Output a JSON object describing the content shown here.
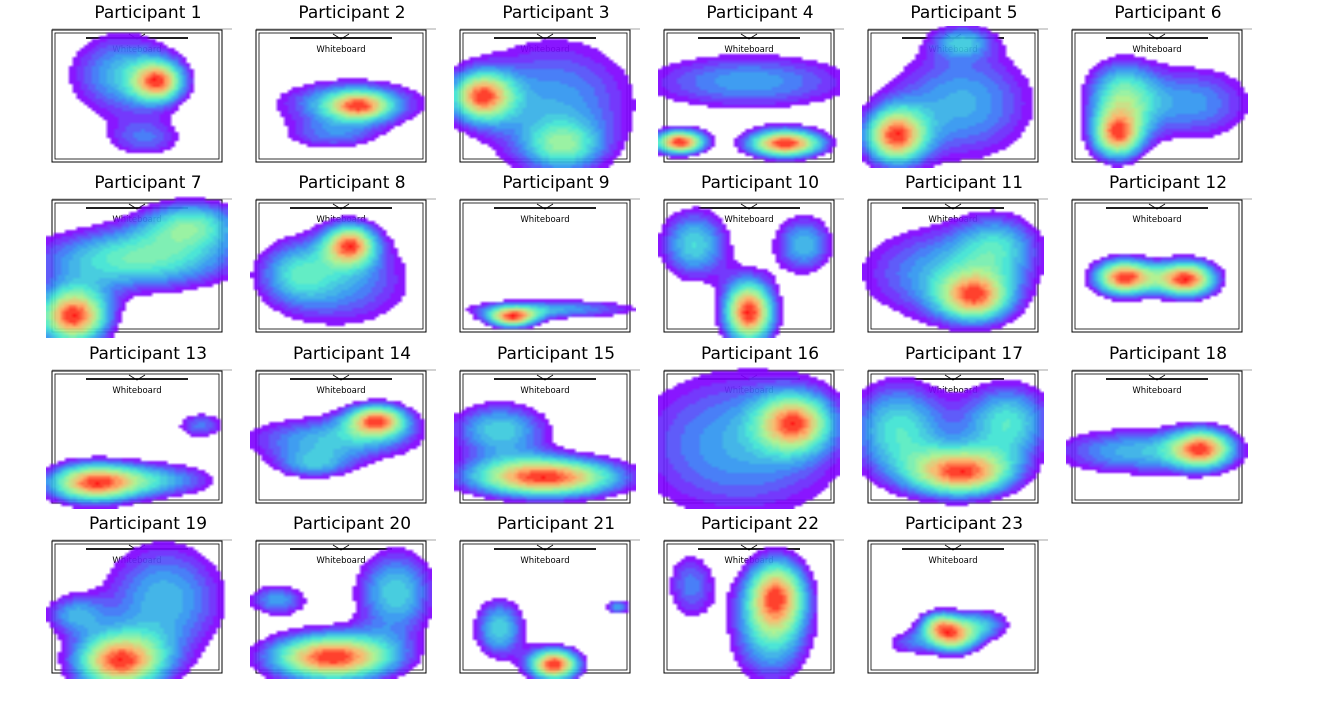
{
  "chart_data": {
    "type": "heatmap",
    "kind": "kernel-density contour maps of participant positions over a room floor plan",
    "colormap": [
      "#8000ff",
      "#2d8af4",
      "#3ee8d0",
      "#a8f48c",
      "#ffb061",
      "#ff0000"
    ],
    "room_label": "Whiteboard",
    "coordinate_space": "normalized room coordinates (0,0 = top-left of room, 1,1 = bottom-right)",
    "panels": [
      {
        "title": "Participant 1",
        "blobs": [
          {
            "x": 0.42,
            "y": 0.35,
            "sx": 0.22,
            "sy": 0.22,
            "w": 0.6
          },
          {
            "x": 0.62,
            "y": 0.4,
            "sx": 0.1,
            "sy": 0.1,
            "w": 1.0
          },
          {
            "x": 0.55,
            "y": 0.8,
            "sx": 0.16,
            "sy": 0.1,
            "w": 0.4
          }
        ]
      },
      {
        "title": "Participant 2",
        "blobs": [
          {
            "x": 0.55,
            "y": 0.55,
            "sx": 0.3,
            "sy": 0.12,
            "w": 0.8
          },
          {
            "x": 0.6,
            "y": 0.57,
            "sx": 0.12,
            "sy": 0.07,
            "w": 1.0
          },
          {
            "x": 0.45,
            "y": 0.78,
            "sx": 0.2,
            "sy": 0.08,
            "w": 0.5
          }
        ]
      },
      {
        "title": "Participant 3",
        "blobs": [
          {
            "x": 0.15,
            "y": 0.5,
            "sx": 0.12,
            "sy": 0.12,
            "w": 1.0
          },
          {
            "x": 0.55,
            "y": 0.55,
            "sx": 0.35,
            "sy": 0.35,
            "w": 0.5
          },
          {
            "x": 0.6,
            "y": 0.85,
            "sx": 0.15,
            "sy": 0.12,
            "w": 0.5
          }
        ]
      },
      {
        "title": "Participant 4",
        "blobs": [
          {
            "x": 0.12,
            "y": 0.82,
            "sx": 0.1,
            "sy": 0.06,
            "w": 1.0
          },
          {
            "x": 0.7,
            "y": 0.83,
            "sx": 0.15,
            "sy": 0.07,
            "w": 1.0
          },
          {
            "x": 0.5,
            "y": 0.4,
            "sx": 0.45,
            "sy": 0.15,
            "w": 0.4
          }
        ]
      },
      {
        "title": "Participant 5",
        "blobs": [
          {
            "x": 0.18,
            "y": 0.78,
            "sx": 0.12,
            "sy": 0.14,
            "w": 1.0
          },
          {
            "x": 0.55,
            "y": 0.55,
            "sx": 0.3,
            "sy": 0.3,
            "w": 0.5
          },
          {
            "x": 0.55,
            "y": 0.12,
            "sx": 0.12,
            "sy": 0.08,
            "w": 0.4
          }
        ]
      },
      {
        "title": "Participant 6",
        "blobs": [
          {
            "x": 0.28,
            "y": 0.78,
            "sx": 0.1,
            "sy": 0.12,
            "w": 1.0
          },
          {
            "x": 0.3,
            "y": 0.5,
            "sx": 0.14,
            "sy": 0.18,
            "w": 0.7
          },
          {
            "x": 0.7,
            "y": 0.55,
            "sx": 0.25,
            "sy": 0.2,
            "w": 0.5
          }
        ]
      },
      {
        "title": "Participant 7",
        "blobs": [
          {
            "x": 0.15,
            "y": 0.85,
            "sx": 0.14,
            "sy": 0.14,
            "w": 1.0
          },
          {
            "x": 0.5,
            "y": 0.45,
            "sx": 0.4,
            "sy": 0.16,
            "w": 0.6
          },
          {
            "x": 0.8,
            "y": 0.2,
            "sx": 0.2,
            "sy": 0.12,
            "w": 0.5
          }
        ]
      },
      {
        "title": "Participant 8",
        "blobs": [
          {
            "x": 0.55,
            "y": 0.35,
            "sx": 0.1,
            "sy": 0.1,
            "w": 1.0
          },
          {
            "x": 0.5,
            "y": 0.6,
            "sx": 0.3,
            "sy": 0.25,
            "w": 0.5
          },
          {
            "x": 0.25,
            "y": 0.55,
            "sx": 0.15,
            "sy": 0.15,
            "w": 0.4
          }
        ]
      },
      {
        "title": "Participant 9",
        "blobs": [
          {
            "x": 0.32,
            "y": 0.86,
            "sx": 0.1,
            "sy": 0.05,
            "w": 1.0
          },
          {
            "x": 0.55,
            "y": 0.8,
            "sx": 0.35,
            "sy": 0.05,
            "w": 0.5
          }
        ]
      },
      {
        "title": "Participant 10",
        "blobs": [
          {
            "x": 0.5,
            "y": 0.82,
            "sx": 0.1,
            "sy": 0.16,
            "w": 1.0
          },
          {
            "x": 0.2,
            "y": 0.35,
            "sx": 0.14,
            "sy": 0.18,
            "w": 0.5
          },
          {
            "x": 0.8,
            "y": 0.35,
            "sx": 0.12,
            "sy": 0.15,
            "w": 0.45
          }
        ]
      },
      {
        "title": "Participant 11",
        "blobs": [
          {
            "x": 0.62,
            "y": 0.72,
            "sx": 0.14,
            "sy": 0.12,
            "w": 1.0
          },
          {
            "x": 0.45,
            "y": 0.55,
            "sx": 0.35,
            "sy": 0.25,
            "w": 0.6
          },
          {
            "x": 0.75,
            "y": 0.35,
            "sx": 0.16,
            "sy": 0.16,
            "w": 0.5
          }
        ]
      },
      {
        "title": "Participant 12",
        "blobs": [
          {
            "x": 0.32,
            "y": 0.58,
            "sx": 0.12,
            "sy": 0.09,
            "w": 1.0
          },
          {
            "x": 0.66,
            "y": 0.59,
            "sx": 0.12,
            "sy": 0.09,
            "w": 1.0
          }
        ]
      },
      {
        "title": "Participant 13",
        "blobs": [
          {
            "x": 0.25,
            "y": 0.82,
            "sx": 0.18,
            "sy": 0.1,
            "w": 1.0
          },
          {
            "x": 0.6,
            "y": 0.8,
            "sx": 0.25,
            "sy": 0.09,
            "w": 0.5
          },
          {
            "x": 0.85,
            "y": 0.42,
            "sx": 0.1,
            "sy": 0.07,
            "w": 0.4
          }
        ]
      },
      {
        "title": "Participant 14",
        "blobs": [
          {
            "x": 0.7,
            "y": 0.38,
            "sx": 0.12,
            "sy": 0.08,
            "w": 1.0
          },
          {
            "x": 0.45,
            "y": 0.52,
            "sx": 0.35,
            "sy": 0.12,
            "w": 0.55
          },
          {
            "x": 0.35,
            "y": 0.7,
            "sx": 0.15,
            "sy": 0.07,
            "w": 0.4
          }
        ]
      },
      {
        "title": "Participant 15",
        "blobs": [
          {
            "x": 0.5,
            "y": 0.78,
            "sx": 0.3,
            "sy": 0.1,
            "w": 1.0
          },
          {
            "x": 0.25,
            "y": 0.45,
            "sx": 0.2,
            "sy": 0.14,
            "w": 0.5
          }
        ]
      },
      {
        "title": "Participant 16",
        "blobs": [
          {
            "x": 0.75,
            "y": 0.4,
            "sx": 0.14,
            "sy": 0.14,
            "w": 1.0
          },
          {
            "x": 0.45,
            "y": 0.55,
            "sx": 0.45,
            "sy": 0.4,
            "w": 0.6
          }
        ]
      },
      {
        "title": "Participant 17",
        "blobs": [
          {
            "x": 0.55,
            "y": 0.75,
            "sx": 0.2,
            "sy": 0.12,
            "w": 1.0
          },
          {
            "x": 0.2,
            "y": 0.45,
            "sx": 0.2,
            "sy": 0.25,
            "w": 0.6
          },
          {
            "x": 0.8,
            "y": 0.4,
            "sx": 0.18,
            "sy": 0.2,
            "w": 0.6
          }
        ]
      },
      {
        "title": "Participant 18",
        "blobs": [
          {
            "x": 0.75,
            "y": 0.58,
            "sx": 0.12,
            "sy": 0.1,
            "w": 1.0
          },
          {
            "x": 0.4,
            "y": 0.6,
            "sx": 0.35,
            "sy": 0.12,
            "w": 0.6
          }
        ]
      },
      {
        "title": "Participant 19",
        "blobs": [
          {
            "x": 0.4,
            "y": 0.88,
            "sx": 0.18,
            "sy": 0.14,
            "w": 1.0
          },
          {
            "x": 0.65,
            "y": 0.45,
            "sx": 0.25,
            "sy": 0.3,
            "w": 0.5
          },
          {
            "x": 0.15,
            "y": 0.55,
            "sx": 0.12,
            "sy": 0.1,
            "w": 0.4
          }
        ]
      },
      {
        "title": "Participant 20",
        "blobs": [
          {
            "x": 0.45,
            "y": 0.85,
            "sx": 0.25,
            "sy": 0.12,
            "w": 1.0
          },
          {
            "x": 0.8,
            "y": 0.4,
            "sx": 0.16,
            "sy": 0.22,
            "w": 0.5
          },
          {
            "x": 0.15,
            "y": 0.45,
            "sx": 0.12,
            "sy": 0.08,
            "w": 0.4
          }
        ]
      },
      {
        "title": "Participant 21",
        "blobs": [
          {
            "x": 0.55,
            "y": 0.9,
            "sx": 0.1,
            "sy": 0.08,
            "w": 1.0
          },
          {
            "x": 0.25,
            "y": 0.65,
            "sx": 0.1,
            "sy": 0.15,
            "w": 0.5
          },
          {
            "x": 0.9,
            "y": 0.5,
            "sx": 0.05,
            "sy": 0.04,
            "w": 0.4
          }
        ]
      },
      {
        "title": "Participant 22",
        "blobs": [
          {
            "x": 0.65,
            "y": 0.4,
            "sx": 0.12,
            "sy": 0.18,
            "w": 1.0
          },
          {
            "x": 0.62,
            "y": 0.7,
            "sx": 0.16,
            "sy": 0.25,
            "w": 0.6
          },
          {
            "x": 0.18,
            "y": 0.35,
            "sx": 0.1,
            "sy": 0.18,
            "w": 0.45
          }
        ]
      },
      {
        "title": "Participant 23",
        "blobs": [
          {
            "x": 0.5,
            "y": 0.72,
            "sx": 0.1,
            "sy": 0.08,
            "w": 1.0
          },
          {
            "x": 0.42,
            "y": 0.62,
            "sx": 0.08,
            "sy": 0.07,
            "w": 0.8
          },
          {
            "x": 0.65,
            "y": 0.62,
            "sx": 0.12,
            "sy": 0.08,
            "w": 0.6
          },
          {
            "x": 0.25,
            "y": 0.75,
            "sx": 0.1,
            "sy": 0.07,
            "w": 0.4
          }
        ]
      }
    ]
  }
}
